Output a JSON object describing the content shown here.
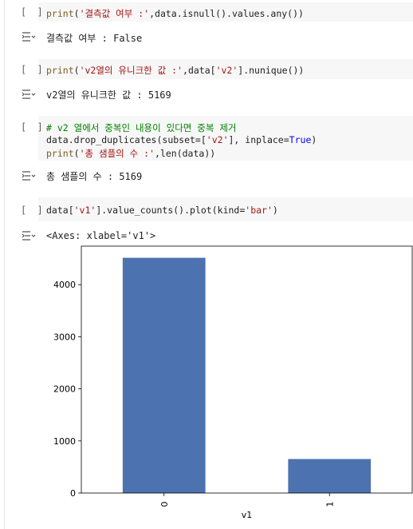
{
  "cells": [
    {
      "bracket": "[ ]",
      "code": [
        [
          {
            "t": "fn",
            "v": "print"
          },
          {
            "t": "",
            "v": "("
          },
          {
            "t": "str",
            "v": "'결측값 여부 :'"
          },
          {
            "t": "",
            "v": ",data.isnull().values.any())"
          }
        ]
      ],
      "output": "결측값 여부 : False"
    },
    {
      "bracket": "[ ]",
      "code": [
        [
          {
            "t": "fn",
            "v": "print"
          },
          {
            "t": "",
            "v": "("
          },
          {
            "t": "str",
            "v": "'v2열의 유니크한 값 :'"
          },
          {
            "t": "",
            "v": ",data["
          },
          {
            "t": "str",
            "v": "'v2'"
          },
          {
            "t": "",
            "v": "].nunique())"
          }
        ]
      ],
      "output": "v2열의 유니크한 값 : 5169"
    },
    {
      "bracket": "[ ]",
      "code": [
        [
          {
            "t": "cm",
            "v": "# v2 열에서 중복인 내용이 있다면 중복 제거"
          }
        ],
        [
          {
            "t": "",
            "v": "data.drop_duplicates(subset=["
          },
          {
            "t": "str",
            "v": "'v2'"
          },
          {
            "t": "",
            "v": "], inplace="
          },
          {
            "t": "kw",
            "v": "True"
          },
          {
            "t": "",
            "v": ")"
          }
        ],
        [
          {
            "t": "fn",
            "v": "print"
          },
          {
            "t": "",
            "v": "("
          },
          {
            "t": "str",
            "v": "'총 샘플의 수 :'"
          },
          {
            "t": "",
            "v": ",len(data))"
          }
        ]
      ],
      "output": "총 샘플의 수 : 5169"
    },
    {
      "bracket": "[ ]",
      "code": [
        [
          {
            "t": "",
            "v": "data["
          },
          {
            "t": "str",
            "v": "'v1'"
          },
          {
            "t": "",
            "v": "].value_counts().plot(kind="
          },
          {
            "t": "str",
            "v": "'bar'"
          },
          {
            "t": "",
            "v": ")"
          }
        ]
      ],
      "output": "<Axes: xlabel='v1'>"
    }
  ],
  "colors": {
    "bar": "#4c72b0",
    "code_bg": "#f7f7f7",
    "string": "#a31515",
    "keyword": "#0000ff",
    "comment": "#008000"
  },
  "chart_data": {
    "type": "bar",
    "categories": [
      "0",
      "1"
    ],
    "values": [
      4516,
      653
    ],
    "xlabel": "v1",
    "ylabel": "",
    "ylim": [
      0,
      4740
    ],
    "yticks": [
      0,
      1000,
      2000,
      3000,
      4000
    ],
    "grid": false,
    "legend": "none"
  }
}
